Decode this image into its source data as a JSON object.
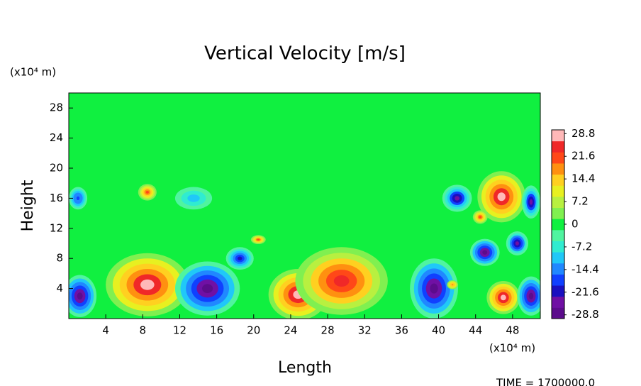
{
  "chart_data": {
    "type": "contour",
    "title": "Vertical Velocity [m/s]",
    "x_label": "Length",
    "y_label": "Height",
    "x_unit": "(x10⁴ m)",
    "y_unit": "(x10⁴ m)",
    "footer": "TIME  =  1700000.0",
    "xlim": [
      0,
      51
    ],
    "ylim": [
      0,
      30
    ],
    "xticks": [
      4,
      8,
      12,
      16,
      20,
      24,
      28,
      32,
      36,
      40,
      44,
      48
    ],
    "yticks": [
      4,
      8,
      12,
      16,
      20,
      24,
      28
    ],
    "clim": [
      -30,
      30
    ],
    "cticks": [
      28.8,
      21.6,
      14.4,
      7.2,
      0,
      -7.2,
      -14.4,
      -21.6,
      -28.8
    ],
    "colormap": [
      "#5c0c8c",
      "#7010a4",
      "#1a10c0",
      "#1040ff",
      "#2088ff",
      "#20c8f8",
      "#30ecd0",
      "#50f4a0",
      "#10f040",
      "#80f050",
      "#b8f040",
      "#e8f020",
      "#ffd020",
      "#ff9010",
      "#ff4818",
      "#f02828",
      "#ffb8b8"
    ],
    "blobs": [
      {
        "x": 1.2,
        "y": 3,
        "rx": 1.8,
        "ry": 2.8,
        "value": -30
      },
      {
        "x": 8.5,
        "y": 4.5,
        "rx": 4.5,
        "ry": 4.2,
        "value": 30
      },
      {
        "x": 15,
        "y": 4,
        "rx": 3.5,
        "ry": 3.6,
        "value": -30
      },
      {
        "x": 18.5,
        "y": 8,
        "rx": 1.5,
        "ry": 1.5,
        "value": -22
      },
      {
        "x": 24.8,
        "y": 3.2,
        "rx": 3.2,
        "ry": 3.4,
        "value": 30
      },
      {
        "x": 29.5,
        "y": 5,
        "rx": 5,
        "ry": 4.5,
        "value": 28
      },
      {
        "x": 39.5,
        "y": 4,
        "rx": 2.6,
        "ry": 4,
        "value": -30
      },
      {
        "x": 47,
        "y": 2.8,
        "rx": 1.8,
        "ry": 2.2,
        "value": 30
      },
      {
        "x": 50,
        "y": 3,
        "rx": 1.5,
        "ry": 2.6,
        "value": -30
      },
      {
        "x": 46.8,
        "y": 16.2,
        "rx": 2.6,
        "ry": 3.4,
        "value": 30
      },
      {
        "x": 45,
        "y": 8.8,
        "rx": 1.6,
        "ry": 1.8,
        "value": -30
      },
      {
        "x": 48.5,
        "y": 10,
        "rx": 1.2,
        "ry": 1.6,
        "value": -28
      },
      {
        "x": 42,
        "y": 16,
        "rx": 1.6,
        "ry": 1.8,
        "value": -26
      },
      {
        "x": 50,
        "y": 15.5,
        "rx": 1,
        "ry": 2.2,
        "value": -26
      },
      {
        "x": 1,
        "y": 16,
        "rx": 1,
        "ry": 1.5,
        "value": -20
      },
      {
        "x": 8.5,
        "y": 16.8,
        "rx": 1,
        "ry": 1.1,
        "value": 22
      },
      {
        "x": 44.5,
        "y": 13.5,
        "rx": 0.8,
        "ry": 0.9,
        "value": 22
      },
      {
        "x": 41.5,
        "y": 4.5,
        "rx": 0.6,
        "ry": 0.6,
        "value": 20
      },
      {
        "x": 20.5,
        "y": 10.5,
        "rx": 0.8,
        "ry": 0.6,
        "value": 22
      },
      {
        "x": 13.5,
        "y": 16,
        "rx": 2,
        "ry": 1.5,
        "value": -12
      }
    ]
  }
}
